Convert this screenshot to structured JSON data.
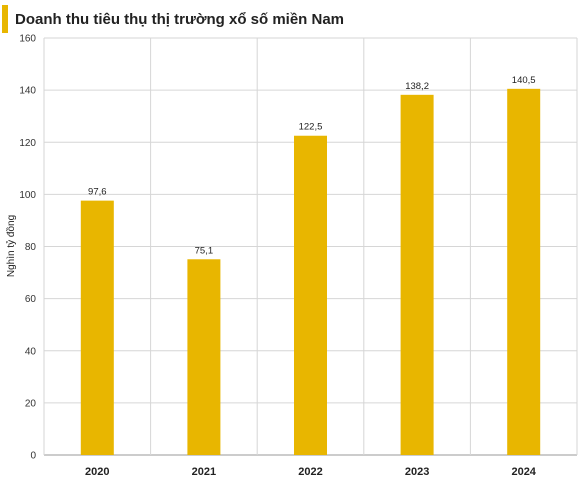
{
  "header": {
    "title": "Doanh thu tiêu thụ thị trường xổ số miền Nam",
    "accent_color": "#E8B600"
  },
  "chart_data": {
    "type": "bar",
    "title": "Doanh thu tiêu thụ thị trường xổ số miền Nam",
    "xlabel": "",
    "ylabel": "Nghìn tỷ đồng",
    "categories": [
      "2020",
      "2021",
      "2022",
      "2023",
      "2024"
    ],
    "values": [
      97.6,
      75.1,
      122.5,
      138.2,
      140.5
    ],
    "data_labels": [
      "97,6",
      "75,1",
      "122,5",
      "138,2",
      "140,5"
    ],
    "ylim": [
      0,
      160
    ],
    "yticks": [
      0,
      20,
      40,
      60,
      80,
      100,
      120,
      140,
      160
    ],
    "grid": true,
    "legend": "none",
    "bar_color": "#E8B600"
  }
}
